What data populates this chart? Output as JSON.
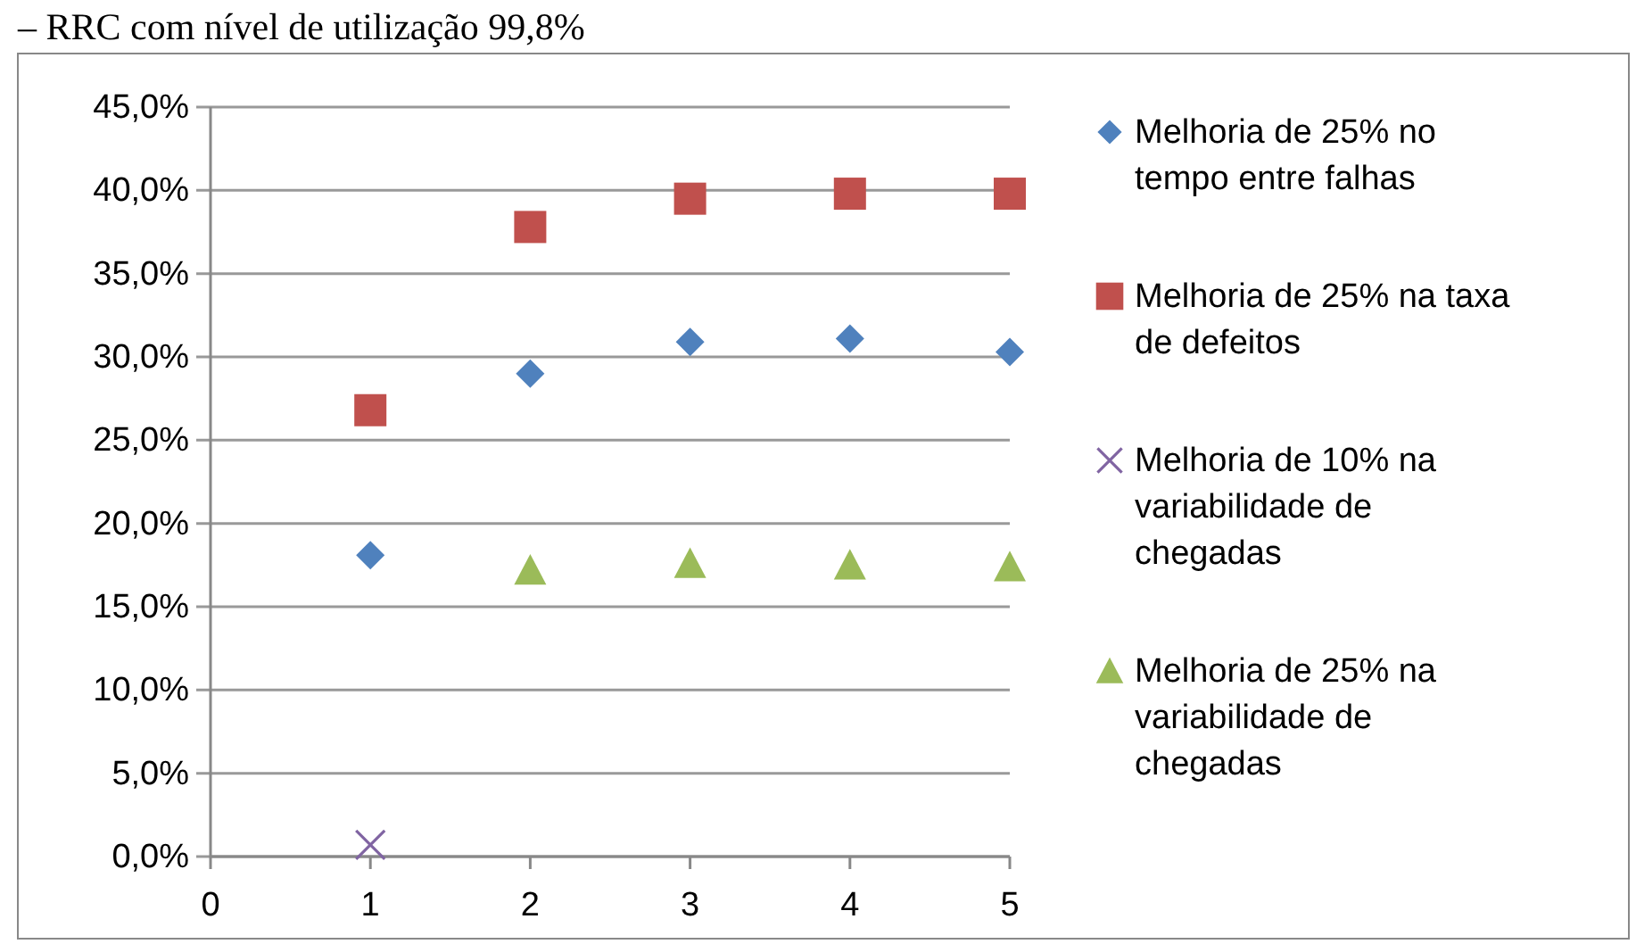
{
  "chart_data": {
    "type": "scatter",
    "title": "– RRC com nível de utilização 99,8%",
    "x": [
      1,
      2,
      3,
      4,
      5
    ],
    "series": [
      {
        "name": "Melhoria de 25% no tempo entre falhas",
        "color": "#4f81bd",
        "marker": "diamond",
        "values": [
          18.1,
          29.0,
          30.9,
          31.1,
          30.3
        ]
      },
      {
        "name": "Melhoria de 25% na taxa de defeitos",
        "color": "#c0504d",
        "marker": "square",
        "values": [
          26.8,
          37.8,
          39.5,
          39.8,
          39.8
        ]
      },
      {
        "name": "Melhoria de 10% na variabilidade de chegadas",
        "color": "#8064a2",
        "marker": "cross",
        "values": [
          0.7,
          null,
          null,
          null,
          null
        ]
      },
      {
        "name": "Melhoria de 25% na variabilidade de chegadas",
        "color": "#9bbb59",
        "marker": "triangle",
        "values": [
          null,
          17.2,
          17.6,
          17.5,
          17.4
        ]
      }
    ],
    "xlim": [
      0,
      5
    ],
    "xticks": [
      0,
      1,
      2,
      3,
      4,
      5
    ],
    "ylim": [
      0,
      45
    ],
    "yticks": [
      {
        "value": 0,
        "label": "0,0%"
      },
      {
        "value": 5,
        "label": "5,0%"
      },
      {
        "value": 10,
        "label": "10,0%"
      },
      {
        "value": 15,
        "label": "15,0%"
      },
      {
        "value": 20,
        "label": "20,0%"
      },
      {
        "value": 25,
        "label": "25,0%"
      },
      {
        "value": 30,
        "label": "30,0%"
      },
      {
        "value": 35,
        "label": "35,0%"
      },
      {
        "value": 40,
        "label": "40,0%"
      },
      {
        "value": 45,
        "label": "45,0%"
      }
    ],
    "grid": "y",
    "legend": "right"
  }
}
